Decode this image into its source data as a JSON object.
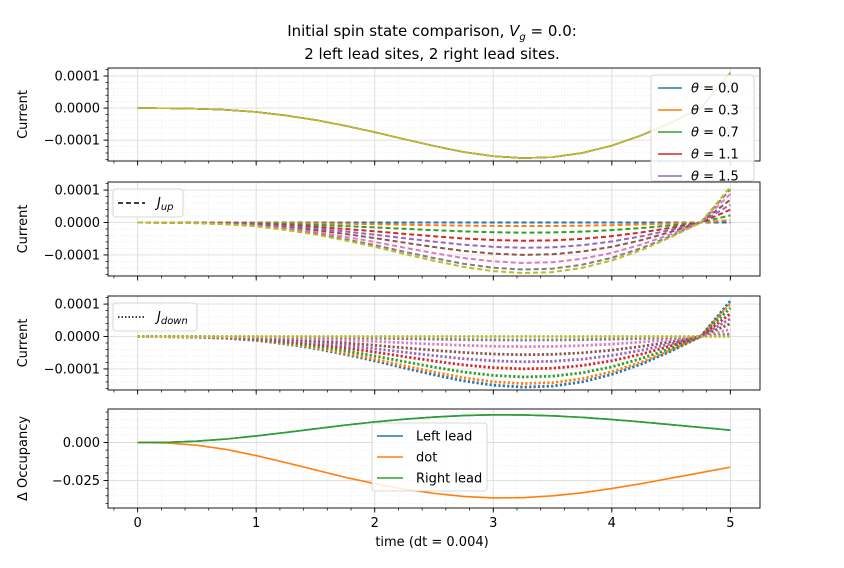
{
  "chart_data": {
    "type": "line",
    "title": {
      "line1_prefix": "Initial spin state comparison, ",
      "line1_var": "V",
      "line1_sub": "g",
      "line1_suffix": " = 0.0:",
      "line2": "2 left lead sites, 2 right lead sites."
    },
    "xlabel": "time (dt = 0.004)",
    "xlim": [
      -0.25,
      5.25
    ],
    "x_ticks": [
      0,
      1,
      2,
      3,
      4,
      5
    ],
    "x_tick_labels": [
      "0",
      "1",
      "2",
      "3",
      "4",
      "5"
    ],
    "theta_colors": [
      "#1f77b4",
      "#ff7f0e",
      "#2ca02c",
      "#d62728",
      "#9467bd",
      "#8c564b",
      "#e377c2",
      "#7f7f7f",
      "#bcbd22"
    ],
    "panels": [
      {
        "ylabel": "Current",
        "ylim": [
          -0.000165,
          0.000125
        ],
        "y_ticks": [
          -0.0001,
          0.0,
          0.0001
        ],
        "y_tick_labels": [
          "−0.0001",
          "0.0000",
          "0.0001"
        ],
        "legend": {
          "entries": [
            {
              "theta": "0.0",
              "color": "#1f77b4"
            },
            {
              "theta": "0.3",
              "color": "#ff7f0e"
            },
            {
              "theta": "0.7",
              "color": "#2ca02c"
            },
            {
              "theta": "1.1",
              "color": "#d62728"
            },
            {
              "theta": "1.5",
              "color": "#9467bd"
            }
          ]
        },
        "series_template": {
          "x": [
            0,
            0.25,
            0.5,
            0.75,
            1.0,
            1.25,
            1.5,
            1.75,
            2.0,
            2.25,
            2.5,
            2.75,
            3.0,
            3.25,
            3.5,
            3.75,
            4.0,
            4.25,
            4.5,
            4.75,
            5.0
          ],
          "y": [
            0,
            -5e-07,
            -2e-06,
            -5.5e-06,
            -1.2e-05,
            -2.3e-05,
            -3.7e-05,
            -5.5e-05,
            -7.5e-05,
            -9.7e-05,
            -0.000118,
            -0.000137,
            -0.00015,
            -0.000156,
            -0.000153,
            -0.00014,
            -0.000117,
            -8.5e-05,
            -4.5e-05,
            0.0,
            0.00011
          ]
        }
      },
      {
        "ylabel": "Current",
        "ylim": [
          -0.000165,
          0.000125
        ],
        "y_ticks": [
          -0.0001,
          0.0,
          0.0001
        ],
        "y_tick_labels": [
          "−0.0001",
          "0.0000",
          "0.0001"
        ],
        "legend_label_main": "J",
        "legend_label_sub": "up",
        "legend_style": "dashed",
        "series_template": {
          "x": [
            0,
            0.25,
            0.5,
            0.75,
            1.0,
            1.25,
            1.5,
            1.75,
            2.0,
            2.25,
            2.5,
            2.75,
            3.0,
            3.25,
            3.5,
            3.75,
            4.0,
            4.25,
            4.5,
            4.75,
            5.0
          ],
          "y": [
            0,
            -5e-07,
            -2e-06,
            -5.5e-06,
            -1.2e-05,
            -2.3e-05,
            -3.7e-05,
            -5.5e-05,
            -7.5e-05,
            -9.7e-05,
            -0.000118,
            -0.000137,
            -0.00015,
            -0.000156,
            -0.000153,
            -0.00014,
            -0.000117,
            -8.5e-05,
            -4.5e-05,
            0.0,
            0.00011
          ]
        },
        "scale_factors": [
          0.0,
          0.07,
          0.2,
          0.36,
          0.5,
          0.64,
          0.8,
          0.93,
          1.0
        ]
      },
      {
        "ylabel": "Current",
        "ylim": [
          -0.000165,
          0.000125
        ],
        "y_ticks": [
          -0.0001,
          0.0,
          0.0001
        ],
        "y_tick_labels": [
          "−0.0001",
          "0.0000",
          "0.0001"
        ],
        "legend_label_main": "J",
        "legend_label_sub": "down",
        "legend_style": "dotted",
        "series_template": {
          "x": [
            0,
            0.25,
            0.5,
            0.75,
            1.0,
            1.25,
            1.5,
            1.75,
            2.0,
            2.25,
            2.5,
            2.75,
            3.0,
            3.25,
            3.5,
            3.75,
            4.0,
            4.25,
            4.5,
            4.75,
            5.0
          ],
          "y": [
            0,
            -5e-07,
            -2e-06,
            -5.5e-06,
            -1.2e-05,
            -2.3e-05,
            -3.7e-05,
            -5.5e-05,
            -7.5e-05,
            -9.7e-05,
            -0.000118,
            -0.000137,
            -0.00015,
            -0.000156,
            -0.000153,
            -0.00014,
            -0.000117,
            -8.5e-05,
            -4.5e-05,
            0.0,
            0.00011
          ]
        },
        "scale_factors": [
          1.0,
          0.93,
          0.8,
          0.64,
          0.5,
          0.36,
          0.2,
          0.07,
          0.0
        ]
      },
      {
        "ylabel": "Δ Occupancy",
        "ylim": [
          -0.043,
          0.022
        ],
        "y_ticks": [
          -0.025,
          0.0
        ],
        "y_tick_labels": [
          "−0.025",
          "0.000"
        ],
        "legend": {
          "entries": [
            {
              "label": "Left lead",
              "color": "#1f77b4"
            },
            {
              "label": "dot",
              "color": "#ff7f0e"
            },
            {
              "label": "Right lead",
              "color": "#2ca02c"
            }
          ]
        },
        "series": [
          {
            "name": "Left lead",
            "color": "#1f77b4",
            "x": [
              0,
              0.25,
              0.5,
              0.75,
              1.0,
              1.25,
              1.5,
              1.75,
              2.0,
              2.25,
              2.5,
              2.75,
              3.0,
              3.25,
              3.5,
              3.75,
              4.0,
              4.25,
              4.5,
              4.75,
              5.0
            ],
            "y": [
              0,
              0.0001,
              0.0009,
              0.0023,
              0.0043,
              0.0066,
              0.009,
              0.0114,
              0.0135,
              0.0153,
              0.0167,
              0.0177,
              0.0182,
              0.0181,
              0.0175,
              0.0165,
              0.0151,
              0.0135,
              0.0117,
              0.0099,
              0.0081
            ]
          },
          {
            "name": "dot",
            "color": "#ff7f0e",
            "x": [
              0,
              0.25,
              0.5,
              0.75,
              1.0,
              1.25,
              1.5,
              1.75,
              2.0,
              2.25,
              2.5,
              2.75,
              3.0,
              3.25,
              3.5,
              3.75,
              4.0,
              4.25,
              4.5,
              4.75,
              5.0
            ],
            "y": [
              0,
              -0.0003,
              -0.0018,
              -0.0046,
              -0.0086,
              -0.0132,
              -0.018,
              -0.0228,
              -0.027,
              -0.0306,
              -0.0334,
              -0.0354,
              -0.0364,
              -0.0362,
              -0.035,
              -0.033,
              -0.0302,
              -0.027,
              -0.0234,
              -0.0198,
              -0.0162
            ]
          },
          {
            "name": "Right lead",
            "color": "#2ca02c",
            "x": [
              0,
              0.25,
              0.5,
              0.75,
              1.0,
              1.25,
              1.5,
              1.75,
              2.0,
              2.25,
              2.5,
              2.75,
              3.0,
              3.25,
              3.5,
              3.75,
              4.0,
              4.25,
              4.5,
              4.75,
              5.0
            ],
            "y": [
              0,
              0.0001,
              0.0009,
              0.0023,
              0.0043,
              0.0066,
              0.009,
              0.0114,
              0.0135,
              0.0153,
              0.0167,
              0.0177,
              0.0182,
              0.0181,
              0.0175,
              0.0165,
              0.0151,
              0.0135,
              0.0117,
              0.0099,
              0.0081
            ]
          }
        ]
      }
    ],
    "grid": "on",
    "legend_placement": [
      "top-right",
      "upper-left",
      "upper-left",
      "center"
    ]
  }
}
